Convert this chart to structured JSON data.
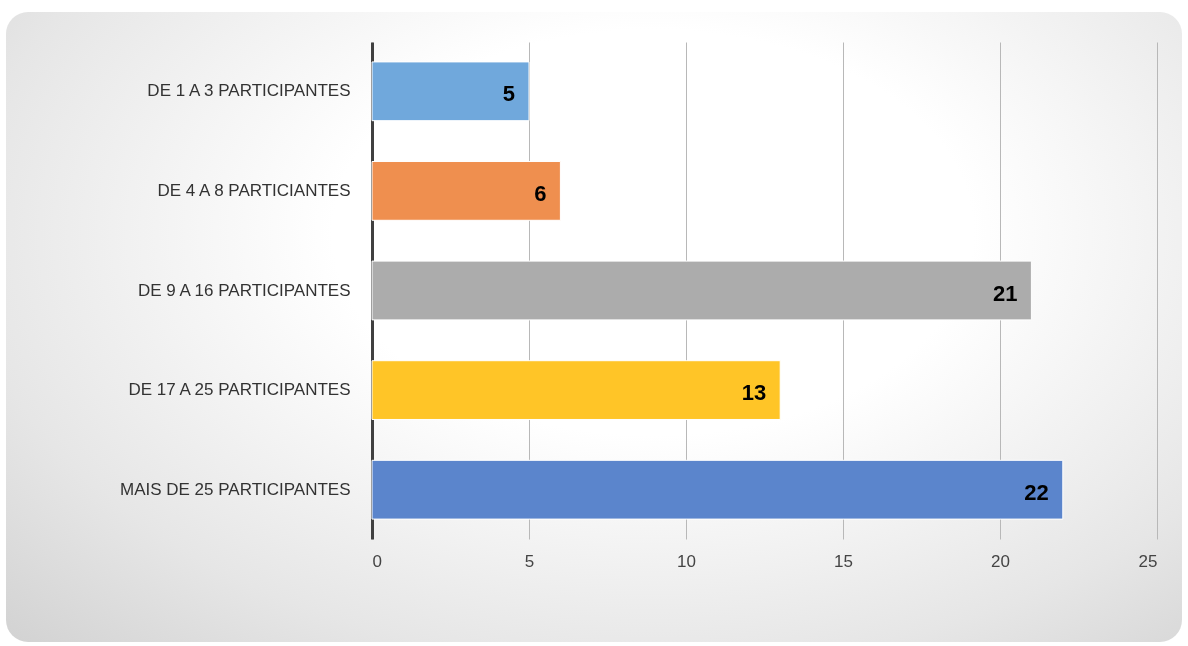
{
  "chart_data": {
    "type": "bar",
    "orientation": "horizontal",
    "categories": [
      "DE 1 A 3  PARTICIPANTES",
      "DE 4 A 8 PARTICIANTES",
      "DE 9 A 16 PARTICIPANTES",
      "DE 17 A 25 PARTICIPANTES",
      "MAIS DE 25 PARTICIPANTES"
    ],
    "values": [
      5,
      6,
      21,
      13,
      22
    ],
    "colors": [
      "#70a8dc",
      "#ef8f4f",
      "#acacac",
      "#ffc527",
      "#5b85cc"
    ],
    "xlim": [
      0,
      25
    ],
    "xticks": [
      0,
      5,
      10,
      15,
      20,
      25
    ],
    "grid": "x",
    "data_labels": true
  }
}
